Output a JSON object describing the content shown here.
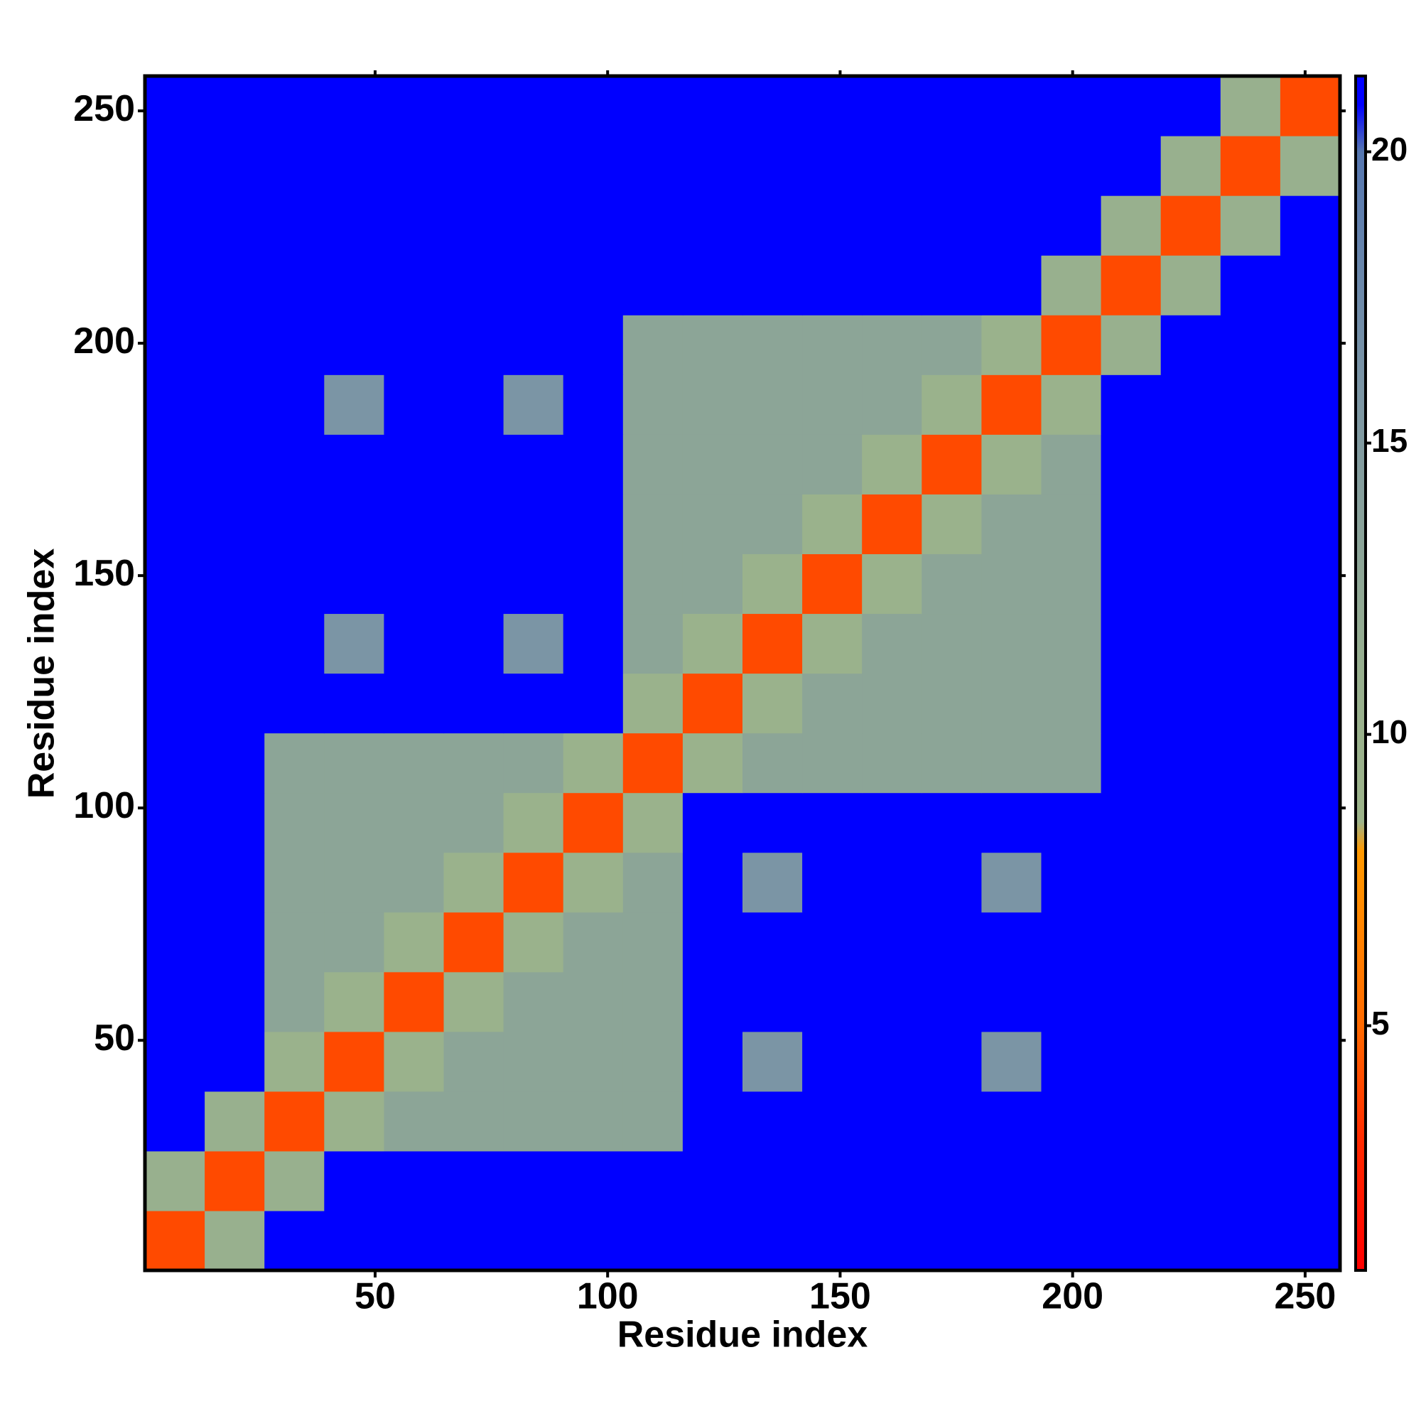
{
  "chart_data": {
    "type": "heatmap",
    "xlabel": "Residue index",
    "ylabel": "Residue index",
    "xlim": [
      0.5,
      257.5
    ],
    "ylim": [
      0.5,
      257.5
    ],
    "xticks": [
      50,
      100,
      150,
      200,
      250
    ],
    "yticks": [
      50,
      100,
      150,
      200,
      250
    ],
    "zlim": [
      0.8,
      21.3
    ],
    "zticks": [
      5,
      10,
      15,
      20
    ],
    "colorscale": [
      [
        0.8,
        "#ff0000"
      ],
      [
        3,
        "#ff2a00"
      ],
      [
        5,
        "#ff6a00"
      ],
      [
        8,
        "#ff9900"
      ],
      [
        8.5,
        "#9db48a"
      ],
      [
        11,
        "#98b08e"
      ],
      [
        16,
        "#7b95a5"
      ],
      [
        20,
        "#5677b0"
      ],
      [
        20.8,
        "#0000ff"
      ],
      [
        21.3,
        "#0000ff"
      ]
    ],
    "z": [
      [
        4,
        11,
        21,
        21,
        21,
        21,
        21,
        21,
        21,
        21,
        21,
        21,
        21,
        21,
        21,
        21,
        21,
        21,
        21,
        21
      ],
      [
        11,
        4,
        11,
        21,
        21,
        21,
        21,
        21,
        21,
        21,
        21,
        21,
        21,
        21,
        21,
        21,
        21,
        21,
        21,
        21
      ],
      [
        21,
        11,
        4,
        10,
        13,
        13,
        13,
        13,
        13,
        21,
        21,
        21,
        21,
        21,
        21,
        21,
        21,
        21,
        21,
        21
      ],
      [
        21,
        21,
        10,
        4,
        10,
        13,
        13,
        13,
        13,
        21,
        16,
        21,
        21,
        21,
        16,
        21,
        21,
        21,
        21,
        21
      ],
      [
        21,
        21,
        13,
        10,
        4,
        10,
        13,
        13,
        13,
        21,
        21,
        21,
        21,
        21,
        21,
        21,
        21,
        21,
        21,
        21
      ],
      [
        21,
        21,
        13,
        13,
        10,
        4,
        10,
        13,
        13,
        21,
        21,
        21,
        21,
        21,
        21,
        21,
        21,
        21,
        21,
        21
      ],
      [
        21,
        21,
        13,
        13,
        13,
        10,
        4,
        10,
        13,
        21,
        16,
        21,
        21,
        21,
        16,
        21,
        21,
        21,
        21,
        21
      ],
      [
        21,
        21,
        13,
        13,
        13,
        13,
        10,
        4,
        10,
        21,
        21,
        21,
        21,
        21,
        21,
        21,
        21,
        21,
        21,
        21
      ],
      [
        21,
        21,
        13,
        13,
        13,
        13,
        13,
        10,
        4,
        10,
        13,
        13,
        13,
        13,
        13,
        13,
        21,
        21,
        21,
        21
      ],
      [
        21,
        21,
        21,
        21,
        21,
        21,
        21,
        21,
        10,
        4,
        10,
        13,
        13,
        13,
        13,
        13,
        21,
        21,
        21,
        21
      ],
      [
        21,
        21,
        21,
        16,
        21,
        21,
        16,
        21,
        13,
        10,
        4,
        10,
        13,
        13,
        13,
        13,
        21,
        21,
        21,
        21
      ],
      [
        21,
        21,
        21,
        21,
        21,
        21,
        21,
        21,
        13,
        13,
        10,
        4,
        10,
        13,
        13,
        13,
        21,
        21,
        21,
        21
      ],
      [
        21,
        21,
        21,
        21,
        21,
        21,
        21,
        21,
        13,
        13,
        13,
        10,
        4,
        10,
        13,
        13,
        21,
        21,
        21,
        21
      ],
      [
        21,
        21,
        21,
        21,
        21,
        21,
        21,
        21,
        13,
        13,
        13,
        13,
        10,
        4,
        10,
        13,
        21,
        21,
        21,
        21
      ],
      [
        21,
        21,
        21,
        16,
        21,
        21,
        16,
        21,
        13,
        13,
        13,
        13,
        13,
        10,
        4,
        10,
        21,
        21,
        21,
        21
      ],
      [
        21,
        21,
        21,
        21,
        21,
        21,
        21,
        21,
        13,
        13,
        13,
        13,
        13,
        13,
        10,
        4,
        11,
        21,
        21,
        21
      ],
      [
        21,
        21,
        21,
        21,
        21,
        21,
        21,
        21,
        21,
        21,
        21,
        21,
        21,
        21,
        21,
        11,
        4,
        11,
        21,
        21
      ],
      [
        21,
        21,
        21,
        21,
        21,
        21,
        21,
        21,
        21,
        21,
        21,
        21,
        21,
        21,
        21,
        21,
        11,
        4,
        11,
        21
      ],
      [
        21,
        21,
        21,
        21,
        21,
        21,
        21,
        21,
        21,
        21,
        21,
        21,
        21,
        21,
        21,
        21,
        21,
        11,
        4,
        11
      ],
      [
        21,
        21,
        21,
        21,
        21,
        21,
        21,
        21,
        21,
        21,
        21,
        21,
        21,
        21,
        21,
        21,
        21,
        21,
        11,
        4
      ]
    ]
  }
}
